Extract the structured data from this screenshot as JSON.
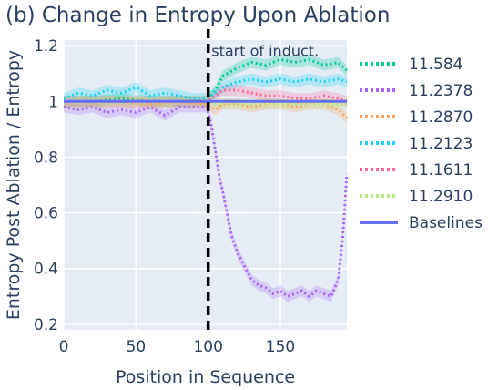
{
  "chart_data": {
    "type": "line",
    "title": "(b) Change in Entropy Upon Ablation",
    "xlabel": "Position in Sequence",
    "ylabel": "Entropy Post Ablation / Entropy",
    "xlim": [
      0,
      196
    ],
    "ylim": [
      0.18,
      1.22
    ],
    "xticks": [
      0,
      50,
      100,
      150
    ],
    "yticks": [
      0.2,
      0.4,
      0.6,
      0.8,
      1,
      1.2
    ],
    "grid": true,
    "legend_position": "right",
    "vline": {
      "x": 100,
      "style": "dashed",
      "color": "#000000"
    },
    "annotation": {
      "text": "start of induct.",
      "x": 101,
      "y": 1.17
    },
    "series": [
      {
        "name": "11.584",
        "color": "#00cc96",
        "style": "dotted",
        "x": [
          0,
          20,
          40,
          60,
          80,
          99,
          105,
          110,
          120,
          130,
          140,
          150,
          160,
          170,
          180,
          190,
          196
        ],
        "y": [
          1.0,
          1.0,
          1.01,
          1.0,
          1.0,
          1.0,
          1.04,
          1.09,
          1.12,
          1.14,
          1.13,
          1.15,
          1.14,
          1.15,
          1.13,
          1.14,
          1.11
        ]
      },
      {
        "name": "11.2378",
        "color": "#ab63fa",
        "style": "dotted",
        "x": [
          0,
          10,
          20,
          30,
          40,
          50,
          60,
          70,
          80,
          90,
          99,
          102,
          105,
          108,
          110,
          113,
          116,
          120,
          125,
          130,
          135,
          140,
          145,
          150,
          155,
          160,
          165,
          170,
          175,
          180,
          185,
          190,
          193,
          196
        ],
        "y": [
          0.98,
          0.97,
          0.98,
          0.96,
          0.97,
          0.96,
          0.98,
          0.95,
          0.98,
          0.98,
          0.98,
          0.92,
          0.82,
          0.72,
          0.68,
          0.6,
          0.52,
          0.46,
          0.41,
          0.36,
          0.34,
          0.33,
          0.31,
          0.32,
          0.3,
          0.31,
          0.32,
          0.3,
          0.32,
          0.31,
          0.3,
          0.36,
          0.5,
          0.74
        ]
      },
      {
        "name": "11.2870",
        "color": "#ffa15a",
        "style": "dotted",
        "x": [
          0,
          20,
          40,
          60,
          80,
          99,
          105,
          110,
          120,
          130,
          140,
          150,
          160,
          170,
          180,
          190,
          196
        ],
        "y": [
          1.0,
          1.0,
          1.0,
          0.99,
          1.0,
          0.99,
          0.97,
          0.99,
          0.99,
          0.98,
          0.99,
          0.99,
          0.98,
          0.99,
          0.99,
          0.97,
          0.94
        ]
      },
      {
        "name": "11.2123",
        "color": "#19d3f3",
        "style": "dotted",
        "x": [
          0,
          10,
          20,
          30,
          40,
          50,
          60,
          70,
          80,
          90,
          99,
          105,
          110,
          120,
          130,
          140,
          150,
          160,
          170,
          180,
          190,
          196
        ],
        "y": [
          1.01,
          1.03,
          1.02,
          1.04,
          1.03,
          1.05,
          1.02,
          1.03,
          1.02,
          1.01,
          1.01,
          1.03,
          1.05,
          1.07,
          1.08,
          1.07,
          1.08,
          1.07,
          1.08,
          1.07,
          1.08,
          1.07
        ]
      },
      {
        "name": "11.1611",
        "color": "#ff6692",
        "style": "dotted",
        "x": [
          0,
          20,
          40,
          60,
          80,
          99,
          105,
          110,
          120,
          130,
          140,
          150,
          160,
          170,
          180,
          190,
          196
        ],
        "y": [
          1.0,
          1.0,
          1.0,
          1.0,
          1.0,
          1.0,
          1.02,
          1.04,
          1.04,
          1.03,
          1.02,
          1.02,
          1.01,
          1.01,
          1.02,
          1.01,
          1.0
        ]
      },
      {
        "name": "11.2910",
        "color": "#b6e880",
        "style": "dotted",
        "x": [
          0,
          20,
          40,
          60,
          80,
          99,
          105,
          110,
          120,
          130,
          140,
          150,
          160,
          170,
          180,
          190,
          196
        ],
        "y": [
          1.0,
          1.0,
          1.0,
          1.0,
          1.0,
          1.0,
          0.99,
          0.99,
          0.99,
          0.99,
          0.99,
          0.99,
          0.99,
          0.99,
          0.99,
          0.99,
          0.99
        ]
      },
      {
        "name": "Baselines",
        "color": "#636efa",
        "style": "solid",
        "x": [
          0,
          50,
          100,
          150,
          196
        ],
        "y": [
          1.0,
          1.0,
          1.0,
          1.0,
          1.0
        ]
      }
    ]
  }
}
